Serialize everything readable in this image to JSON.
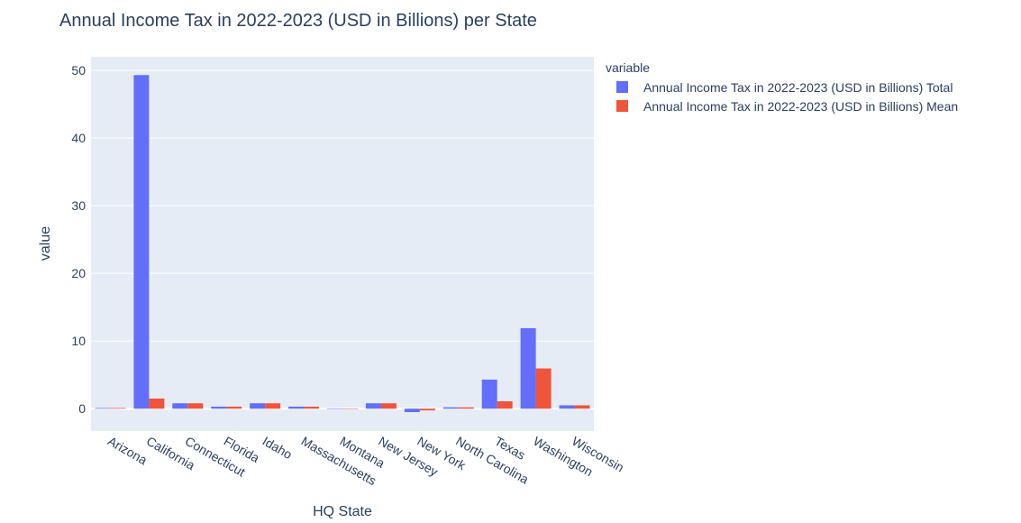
{
  "chart_data": {
    "type": "bar",
    "title": "Annual Income Tax in 2022-2023 (USD in Billions) per State",
    "xlabel": "HQ State",
    "ylabel": "value",
    "legend_title": "variable",
    "legend_position": "top-right",
    "grid": true,
    "ylim": [
      -3.3,
      52
    ],
    "yticks": [
      0,
      10,
      20,
      30,
      40,
      50
    ],
    "categories": [
      "Arizona",
      "California",
      "Connecticut",
      "Florida",
      "Idaho",
      "Massachusetts",
      "Montana",
      "New Jersey",
      "New York",
      "North Carolina",
      "Texas",
      "Washington",
      "Wisconsin"
    ],
    "series": [
      {
        "name": "Annual Income Tax in 2022-2023 (USD in Billions) Total",
        "color": "#636efa",
        "values": [
          0.1,
          49.3,
          0.8,
          0.3,
          0.8,
          0.3,
          0.0,
          0.8,
          -0.5,
          0.2,
          4.3,
          11.9,
          0.5
        ]
      },
      {
        "name": "Annual Income Tax in 2022-2023 (USD in Billions) Mean",
        "color": "#ef553b",
        "values": [
          0.1,
          1.5,
          0.8,
          0.3,
          0.8,
          0.3,
          0.0,
          0.8,
          -0.25,
          0.2,
          1.1,
          5.95,
          0.5
        ]
      }
    ]
  }
}
